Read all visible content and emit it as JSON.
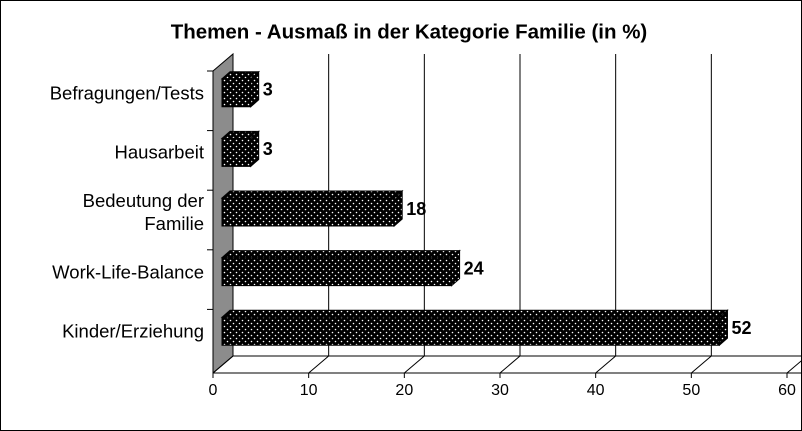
{
  "chart_data": {
    "type": "bar",
    "orientation": "horizontal",
    "title": "Themen - Ausmaß in der Kategorie Familie (in %)",
    "categories": [
      "Befragungen/Tests",
      "Hausarbeit",
      "Bedeutung der Familie",
      "Work-Life-Balance",
      "Kinder/Erziehung"
    ],
    "values": [
      3,
      3,
      18,
      24,
      52
    ],
    "color": "#000000",
    "xlim": [
      0,
      60
    ],
    "xticks": [
      0,
      10,
      20,
      30,
      40,
      50,
      60
    ],
    "grid": true
  }
}
